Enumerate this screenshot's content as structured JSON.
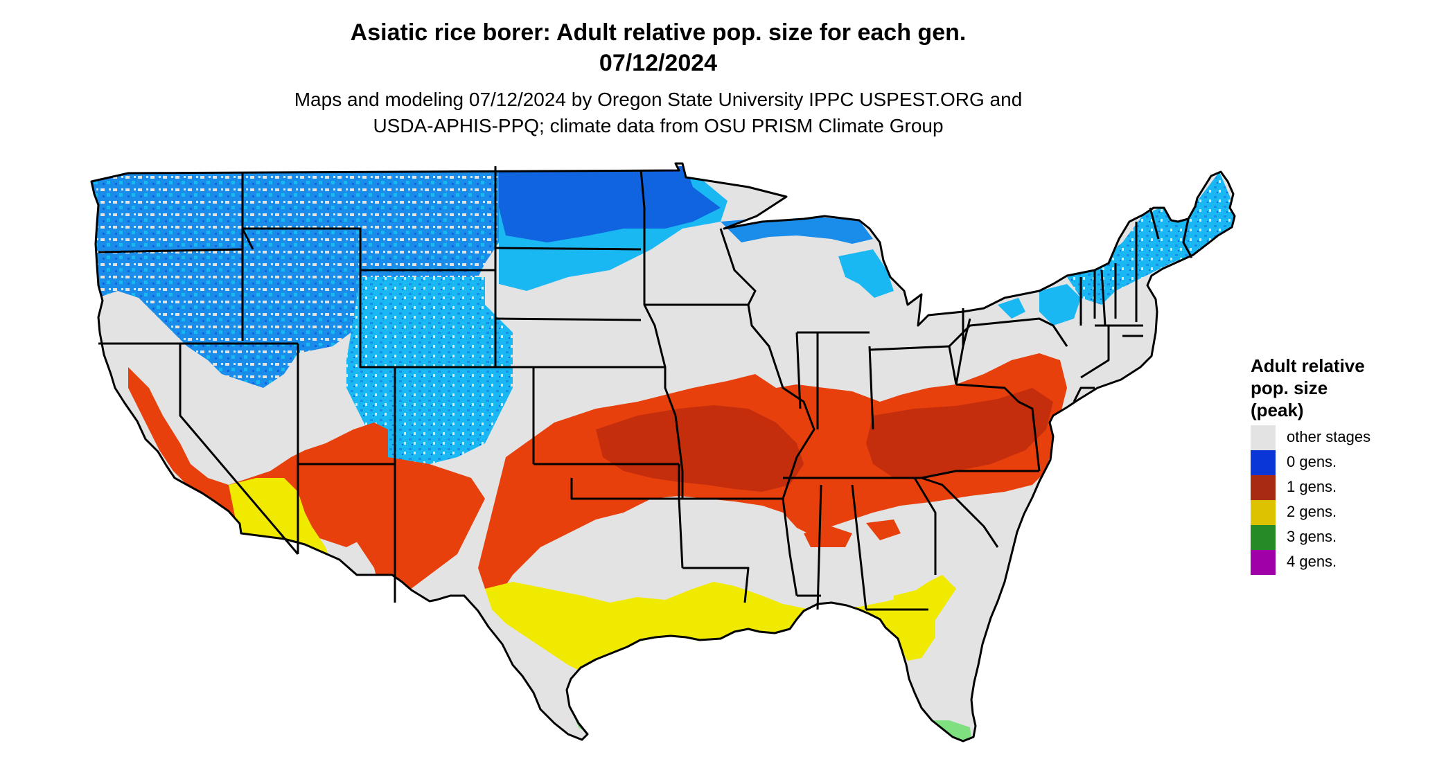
{
  "title_line1": "Asiatic rice borer: Adult relative pop. size for each gen.",
  "title_line2": "07/12/2024",
  "subtitle_line1": "Maps and modeling 07/12/2024 by Oregon State University IPPC USPEST.ORG and",
  "subtitle_line2": "USDA-APHIS-PPQ; climate data from OSU PRISM Climate Group",
  "legend": {
    "title_lines": [
      "Adult relative",
      "pop. size",
      "(peak)"
    ],
    "items": [
      {
        "label": "other stages",
        "color": "#e3e3e3"
      },
      {
        "label": "0 gens.",
        "color": "#0a36d8"
      },
      {
        "label": "1 gens.",
        "color": "#a82a12"
      },
      {
        "label": "2 gens.",
        "color": "#dcc200"
      },
      {
        "label": "3 gens.",
        "color": "#268a26"
      },
      {
        "label": "4 gens.",
        "color": "#a000a8"
      }
    ]
  },
  "map_colors": {
    "background": "#e3e3e3",
    "zero_gen_light": "#1ab8f2",
    "zero_gen_mid": "#1a8cea",
    "zero_gen_dark": "#1064e0",
    "one_gen_light": "#e8400c",
    "one_gen_dark": "#c42e0c",
    "two_gen": "#f0ea00",
    "three_gen": "#7ee07e",
    "borders": "#000000"
  }
}
